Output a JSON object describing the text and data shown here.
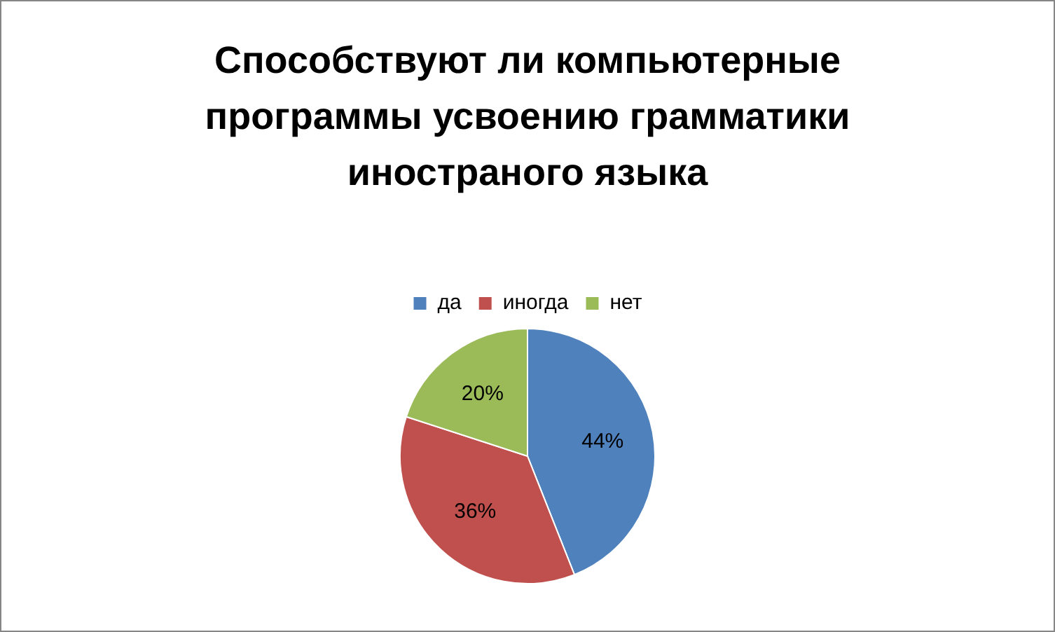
{
  "chart_data": {
    "type": "pie",
    "title": "Способствуют ли компьютерные программы усвоению грамматики иностраного языка",
    "categories": [
      "да",
      "иногда",
      "нет"
    ],
    "values": [
      44,
      36,
      20
    ],
    "value_labels": [
      "44%",
      "36%",
      "20%"
    ],
    "colors": [
      "#4f81bd",
      "#c0504d",
      "#9bbb59"
    ],
    "legend": "top"
  }
}
